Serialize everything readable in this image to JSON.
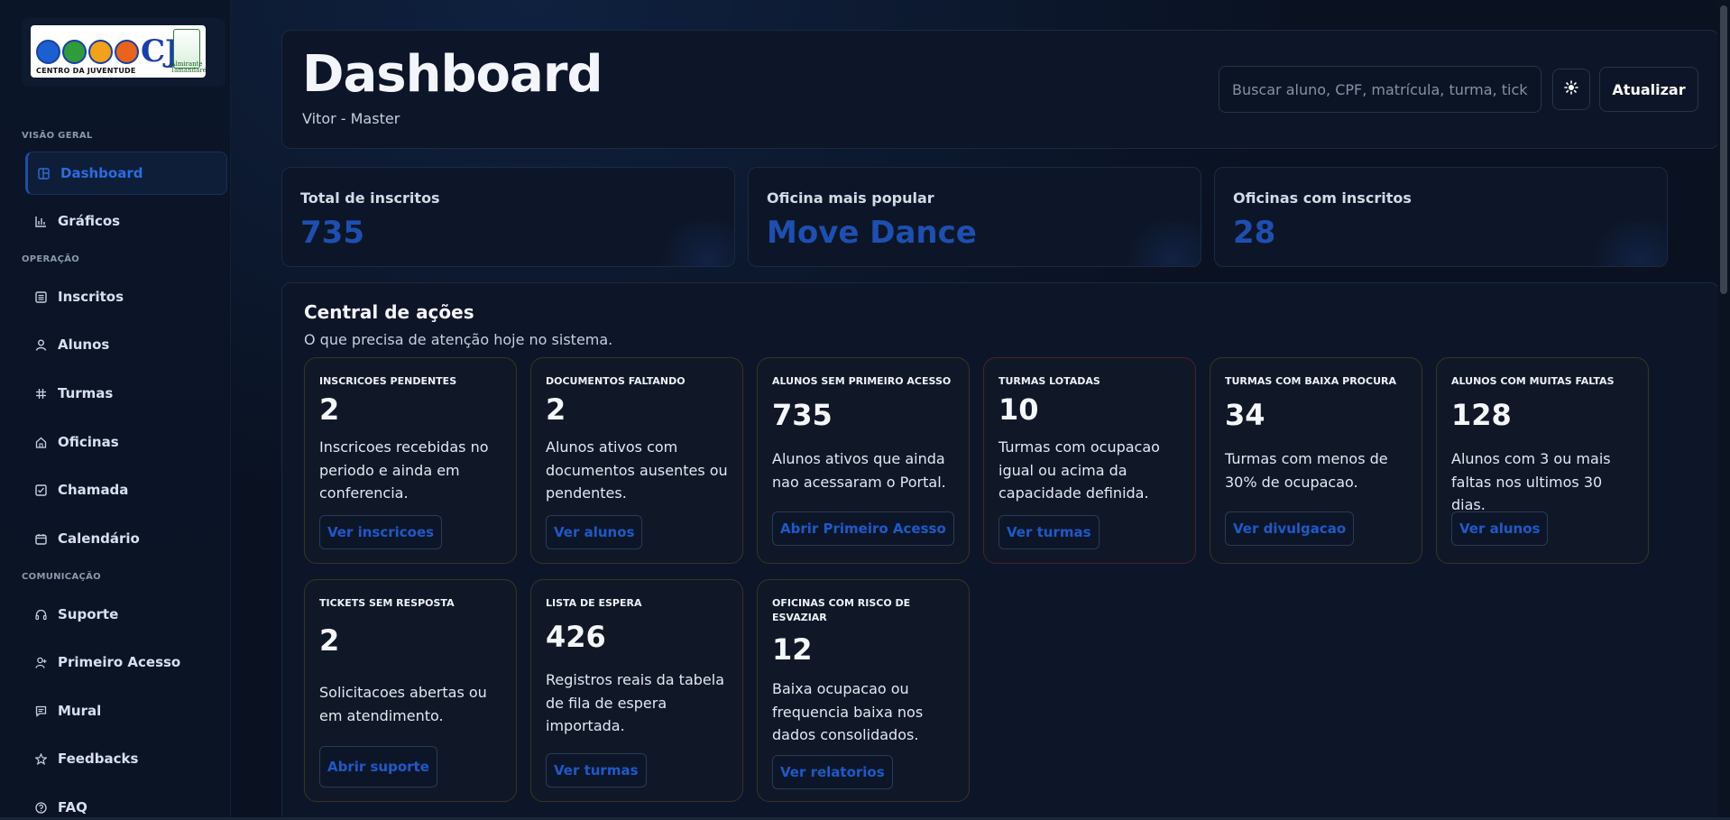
{
  "sidebar": {
    "logo": {
      "caption": "CENTRO DA JUVENTUDE",
      "mark": "CJ",
      "crest_text": "Almirante Tamandaré"
    },
    "sections": {
      "overview": "VISÃO GERAL",
      "operation": "OPERAÇÃO",
      "communication": "COMUNICAÇÃO"
    },
    "items": [
      {
        "label": "Dashboard",
        "icon": "layout-icon",
        "active": true
      },
      {
        "label": "Gráficos",
        "icon": "bar-chart-icon"
      },
      {
        "label": "Inscritos",
        "icon": "list-icon"
      },
      {
        "label": "Alunos",
        "icon": "user-icon"
      },
      {
        "label": "Turmas",
        "icon": "hash-icon"
      },
      {
        "label": "Oficinas",
        "icon": "home-icon"
      },
      {
        "label": "Chamada",
        "icon": "checklist-icon"
      },
      {
        "label": "Calendário",
        "icon": "calendar-icon"
      },
      {
        "label": "Suporte",
        "icon": "headset-icon"
      },
      {
        "label": "Primeiro Acesso",
        "icon": "user-plus-icon"
      },
      {
        "label": "Mural",
        "icon": "message-icon"
      },
      {
        "label": "Feedbacks",
        "icon": "star-icon"
      },
      {
        "label": "FAQ",
        "icon": "help-icon"
      }
    ]
  },
  "header": {
    "title": "Dashboard",
    "subtitle": "Vitor - Master",
    "search_placeholder": "Buscar aluno, CPF, matrícula, turma, ticke",
    "theme_icon": "sun-icon",
    "refresh_label": "Atualizar"
  },
  "stats": [
    {
      "label": "Total de inscritos",
      "value": "735"
    },
    {
      "label": "Oficina mais popular",
      "value": "Move Dance"
    },
    {
      "label": "Oficinas com inscritos",
      "value": "28"
    }
  ],
  "actions": {
    "title": "Central de ações",
    "subtitle": "O que precisa de atenção hoje no sistema.",
    "cards": [
      {
        "title": "INSCRICOES PENDENTES",
        "value": "2",
        "desc": "Inscricoes recebidas no periodo e ainda em conferencia.",
        "button": "Ver inscricoes"
      },
      {
        "title": "DOCUMENTOS FALTANDO",
        "value": "2",
        "desc": "Alunos ativos com documentos ausentes ou pendentes.",
        "button": "Ver alunos"
      },
      {
        "title": "ALUNOS SEM PRIMEIRO ACESSO",
        "value": "735",
        "desc": "Alunos ativos que ainda nao acessaram o Portal.",
        "button": "Abrir Primeiro Acesso"
      },
      {
        "title": "TURMAS LOTADAS",
        "value": "10",
        "desc": "Turmas com ocupacao igual ou acima da capacidade definida.",
        "button": "Ver turmas"
      },
      {
        "title": "TURMAS COM BAIXA PROCURA",
        "value": "34",
        "desc": "Turmas com menos de 30% de ocupacao.",
        "button": "Ver divulgacao"
      },
      {
        "title": "ALUNOS COM MUITAS FALTAS",
        "value": "128",
        "desc": "Alunos com 3 ou mais faltas nos ultimos 30 dias.",
        "button": "Ver alunos"
      },
      {
        "title": "TICKETS SEM RESPOSTA",
        "value": "2",
        "desc": "Solicitacoes abertas ou em atendimento.",
        "button": "Abrir suporte"
      },
      {
        "title": "LISTA DE ESPERA",
        "value": "426",
        "desc": "Registros reais da tabela de fila de espera importada.",
        "button": "Ver turmas"
      },
      {
        "title": "OFICINAS COM RISCO DE ESVAZIAR",
        "value": "12",
        "desc": "Baixa ocupacao ou frequencia baixa nos dados consolidados.",
        "button": "Ver relatorios"
      }
    ]
  },
  "colors": {
    "accent": "#1e4fb0",
    "card_border_warn": "#3a3323",
    "card_border_danger": "#4a2128"
  }
}
